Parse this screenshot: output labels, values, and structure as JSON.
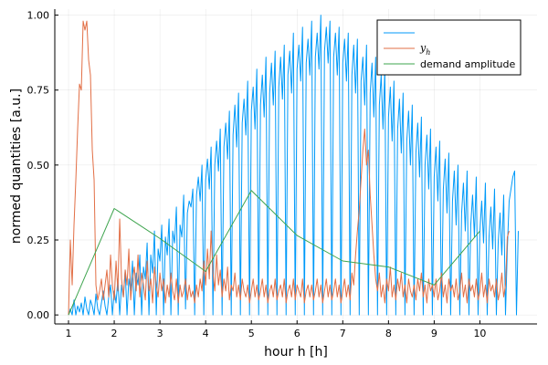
{
  "chart_data": {
    "type": "line",
    "xlabel": "hour h [h]",
    "ylabel": "normed quantities [a.u.]",
    "xlim": [
      0.7,
      11.25
    ],
    "ylim": [
      -0.03,
      1.02
    ],
    "xticks": [
      1,
      2,
      3,
      4,
      5,
      6,
      7,
      8,
      9,
      10
    ],
    "yticks": [
      0.0,
      0.25,
      0.5,
      0.75,
      1.0
    ],
    "ytick_labels": [
      "0.00",
      "0.25",
      "0.50",
      "0.75",
      "1.00"
    ],
    "grid": true,
    "legend_position": "top-right",
    "colors": {
      "blue": "#009af9",
      "orange": "#e26f46",
      "green": "#3ea44e"
    },
    "series": [
      {
        "name": "",
        "color": "#009af9",
        "x_start": 1.0,
        "x_step": 0.04,
        "values": [
          0.0,
          0.02,
          0.0,
          0.05,
          0.0,
          0.03,
          0.01,
          0.04,
          0.0,
          0.06,
          0.02,
          0.0,
          0.05,
          0.03,
          0.0,
          0.07,
          0.02,
          0.0,
          0.04,
          0.08,
          0.03,
          0.0,
          0.06,
          0.1,
          0.0,
          0.08,
          0.04,
          0.12,
          0.0,
          0.1,
          0.06,
          0.15,
          0.0,
          0.12,
          0.08,
          0.18,
          0.0,
          0.14,
          0.1,
          0.2,
          0.0,
          0.16,
          0.12,
          0.24,
          0.0,
          0.2,
          0.14,
          0.28,
          0.0,
          0.22,
          0.18,
          0.3,
          0.0,
          0.26,
          0.2,
          0.32,
          0.0,
          0.28,
          0.24,
          0.36,
          0.0,
          0.3,
          0.26,
          0.4,
          0.02,
          0.34,
          0.38,
          0.36,
          0.42,
          0.0,
          0.4,
          0.46,
          0.38,
          0.5,
          0.0,
          0.45,
          0.52,
          0.42,
          0.56,
          0.0,
          0.5,
          0.58,
          0.48,
          0.62,
          0.0,
          0.56,
          0.64,
          0.52,
          0.68,
          0.0,
          0.6,
          0.7,
          0.56,
          0.74,
          0.0,
          0.64,
          0.72,
          0.6,
          0.78,
          0.0,
          0.68,
          0.76,
          0.62,
          0.82,
          0.0,
          0.7,
          0.8,
          0.66,
          0.86,
          0.0,
          0.74,
          0.84,
          0.7,
          0.88,
          0.0,
          0.76,
          0.86,
          0.72,
          0.9,
          0.0,
          0.8,
          0.88,
          0.74,
          0.94,
          0.0,
          0.82,
          0.9,
          0.78,
          0.96,
          0.0,
          0.84,
          0.92,
          0.8,
          0.98,
          0.0,
          0.86,
          0.94,
          0.82,
          1.0,
          0.0,
          0.88,
          0.96,
          0.84,
          0.98,
          0.0,
          0.86,
          0.94,
          0.8,
          0.96,
          0.0,
          0.84,
          0.92,
          0.78,
          0.94,
          0.0,
          0.8,
          0.9,
          0.74,
          0.92,
          0.0,
          0.78,
          0.86,
          0.7,
          0.9,
          0.0,
          0.74,
          0.84,
          0.66,
          0.86,
          0.0,
          0.7,
          0.8,
          0.62,
          0.82,
          0.0,
          0.66,
          0.76,
          0.58,
          0.78,
          0.0,
          0.62,
          0.72,
          0.54,
          0.74,
          0.0,
          0.58,
          0.68,
          0.5,
          0.7,
          0.0,
          0.54,
          0.64,
          0.46,
          0.66,
          0.0,
          0.5,
          0.6,
          0.42,
          0.62,
          0.0,
          0.46,
          0.56,
          0.38,
          0.58,
          0.0,
          0.42,
          0.52,
          0.34,
          0.54,
          0.0,
          0.38,
          0.48,
          0.3,
          0.5,
          0.0,
          0.34,
          0.44,
          0.28,
          0.48,
          0.0,
          0.3,
          0.4,
          0.26,
          0.46,
          0.0,
          0.28,
          0.38,
          0.24,
          0.44,
          0.0,
          0.26,
          0.36,
          0.22,
          0.42,
          0.0,
          0.24,
          0.34,
          0.2,
          0.4,
          0.0,
          0.22,
          0.38,
          0.42,
          0.46,
          0.48,
          0.0,
          0.28
        ]
      },
      {
        "name": "y_h",
        "color": "#e26f46",
        "x_start": 1.0,
        "x_step": 0.04,
        "values": [
          0.0,
          0.25,
          0.1,
          0.3,
          0.45,
          0.62,
          0.77,
          0.75,
          0.98,
          0.95,
          0.98,
          0.85,
          0.8,
          0.55,
          0.45,
          0.1,
          0.05,
          0.08,
          0.12,
          0.05,
          0.1,
          0.15,
          0.06,
          0.2,
          0.1,
          0.05,
          0.18,
          0.08,
          0.32,
          0.12,
          0.06,
          0.15,
          0.1,
          0.22,
          0.05,
          0.12,
          0.16,
          0.08,
          0.2,
          0.06,
          0.14,
          0.1,
          0.05,
          0.18,
          0.08,
          0.12,
          0.04,
          0.16,
          0.1,
          0.06,
          0.14,
          0.08,
          0.12,
          0.04,
          0.1,
          0.06,
          0.14,
          0.08,
          0.05,
          0.12,
          0.04,
          0.1,
          0.06,
          0.08,
          0.12,
          0.05,
          0.1,
          0.06,
          0.08,
          0.04,
          0.1,
          0.06,
          0.12,
          0.08,
          0.18,
          0.1,
          0.22,
          0.12,
          0.28,
          0.14,
          0.08,
          0.2,
          0.1,
          0.15,
          0.06,
          0.12,
          0.08,
          0.16,
          0.05,
          0.1,
          0.08,
          0.14,
          0.06,
          0.1,
          0.05,
          0.12,
          0.08,
          0.06,
          0.1,
          0.04,
          0.08,
          0.12,
          0.06,
          0.1,
          0.05,
          0.08,
          0.12,
          0.06,
          0.1,
          0.04,
          0.08,
          0.1,
          0.06,
          0.12,
          0.05,
          0.08,
          0.1,
          0.06,
          0.12,
          0.04,
          0.08,
          0.1,
          0.06,
          0.12,
          0.05,
          0.1,
          0.08,
          0.06,
          0.12,
          0.04,
          0.08,
          0.1,
          0.06,
          0.1,
          0.05,
          0.08,
          0.12,
          0.06,
          0.1,
          0.04,
          0.08,
          0.12,
          0.06,
          0.1,
          0.05,
          0.08,
          0.12,
          0.06,
          0.1,
          0.04,
          0.08,
          0.12,
          0.06,
          0.1,
          0.05,
          0.14,
          0.1,
          0.2,
          0.28,
          0.35,
          0.45,
          0.55,
          0.62,
          0.5,
          0.55,
          0.4,
          0.3,
          0.2,
          0.12,
          0.08,
          0.14,
          0.06,
          0.1,
          0.04,
          0.12,
          0.08,
          0.16,
          0.06,
          0.1,
          0.05,
          0.12,
          0.08,
          0.14,
          0.06,
          0.1,
          0.04,
          0.12,
          0.08,
          0.06,
          0.1,
          0.05,
          0.12,
          0.08,
          0.14,
          0.06,
          0.1,
          0.04,
          0.12,
          0.08,
          0.1,
          0.06,
          0.12,
          0.05,
          0.08,
          0.14,
          0.06,
          0.1,
          0.04,
          0.12,
          0.08,
          0.1,
          0.06,
          0.12,
          0.05,
          0.08,
          0.14,
          0.06,
          0.1,
          0.04,
          0.12,
          0.08,
          0.1,
          0.06,
          0.12,
          0.05,
          0.08,
          0.14,
          0.06,
          0.1,
          0.04,
          0.12,
          0.08,
          0.1,
          0.06,
          0.12,
          0.05,
          0.08,
          0.14,
          0.06,
          0.1,
          0.26,
          0.28
        ]
      },
      {
        "name": "demand amplitude",
        "color": "#3ea44e",
        "x": [
          1,
          2,
          3,
          4,
          5,
          6,
          7,
          8,
          9,
          10
        ],
        "values": [
          0.0,
          0.355,
          0.255,
          0.145,
          0.415,
          0.265,
          0.18,
          0.16,
          0.1,
          0.28
        ]
      }
    ],
    "legend": {
      "entries": [
        {
          "label": "",
          "color": "#009af9"
        },
        {
          "label": "y",
          "subscript": "h",
          "color": "#e26f46"
        },
        {
          "label": "demand amplitude",
          "color": "#3ea44e"
        }
      ]
    }
  }
}
